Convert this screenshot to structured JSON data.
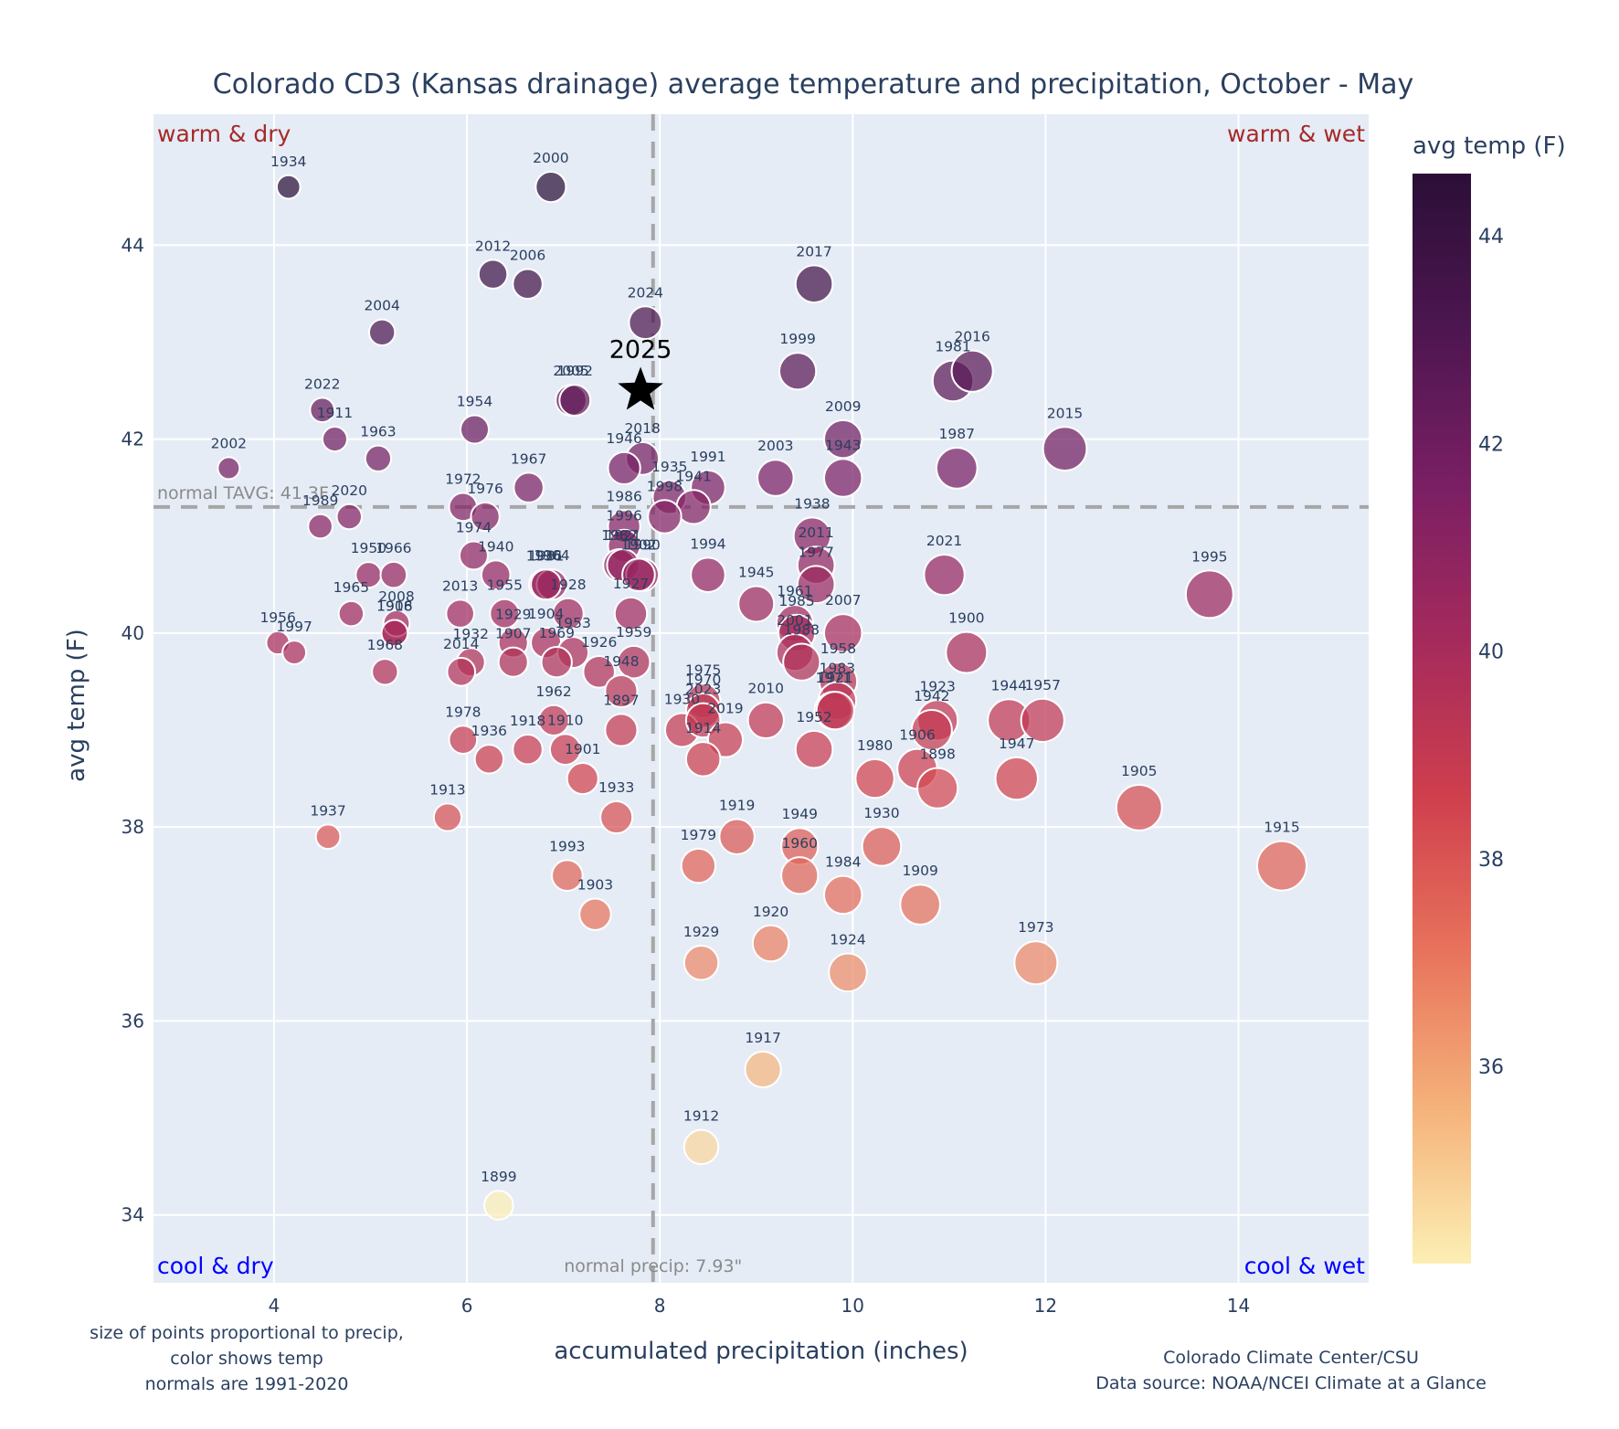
{
  "chart_data": {
    "type": "scatter",
    "title": "Colorado CD3 (Kansas drainage) average temperature and precipitation, October - May",
    "xlabel": "accumulated precipitation (inches)",
    "ylabel": "avg temp (F)",
    "xlim": [
      2.75,
      15.35
    ],
    "ylim": [
      33.3,
      45.35
    ],
    "xticks": [
      4,
      6,
      8,
      10,
      12,
      14
    ],
    "yticks": [
      34,
      36,
      38,
      40,
      42,
      44
    ],
    "grid": true,
    "colorbar": {
      "title": "avg temp (F)",
      "range": [
        34.1,
        44.6
      ],
      "ticks": [
        36,
        38,
        40,
        42,
        44
      ],
      "colorscale": [
        "#fcefb4",
        "#f5b27a",
        "#e8735c",
        "#cf3f4d",
        "#a52a5c",
        "#7a1f64",
        "#4d1650",
        "#2b0f37"
      ]
    },
    "normals": {
      "temp": 41.3,
      "temp_label": "normal TAVG: 41.3F",
      "precip": 7.93,
      "precip_label": "normal precip: 7.93\""
    },
    "quadrants": {
      "warm_dry": "warm & dry",
      "warm_wet": "warm & wet",
      "cool_dry": "cool & dry",
      "cool_wet": "cool & wet"
    },
    "highlight": {
      "year": "2025",
      "x": 7.8,
      "y": 42.5
    },
    "notes_left": [
      "size of points proportional to precip,",
      "color shows temp",
      "normals are 1991-2020"
    ],
    "notes_right": [
      "Colorado Climate Center/CSU",
      "Data source: NOAA/NCEI Climate at a Glance"
    ],
    "points": [
      {
        "year": "1934",
        "x": 4.15,
        "y": 44.6
      },
      {
        "year": "2000",
        "x": 6.87,
        "y": 44.6
      },
      {
        "year": "2012",
        "x": 6.27,
        "y": 43.7
      },
      {
        "year": "2006",
        "x": 6.63,
        "y": 43.6
      },
      {
        "year": "2017",
        "x": 9.6,
        "y": 43.6
      },
      {
        "year": "2024",
        "x": 7.85,
        "y": 43.2
      },
      {
        "year": "2004",
        "x": 5.12,
        "y": 43.1
      },
      {
        "year": "1999",
        "x": 9.43,
        "y": 42.7
      },
      {
        "year": "1981",
        "x": 11.04,
        "y": 42.6
      },
      {
        "year": "2016",
        "x": 11.24,
        "y": 42.7
      },
      {
        "year": "2005",
        "x": 7.08,
        "y": 42.4
      },
      {
        "year": "1992",
        "x": 7.12,
        "y": 42.4
      },
      {
        "year": "2022",
        "x": 4.5,
        "y": 42.3
      },
      {
        "year": "1954",
        "x": 6.08,
        "y": 42.1
      },
      {
        "year": "1911",
        "x": 4.63,
        "y": 42.0
      },
      {
        "year": "2009",
        "x": 9.9,
        "y": 42.0
      },
      {
        "year": "1943",
        "x": 9.9,
        "y": 41.6
      },
      {
        "year": "2015",
        "x": 12.2,
        "y": 41.9
      },
      {
        "year": "1963",
        "x": 5.08,
        "y": 41.8
      },
      {
        "year": "2018",
        "x": 7.82,
        "y": 41.8
      },
      {
        "year": "2002",
        "x": 3.53,
        "y": 41.7
      },
      {
        "year": "1946",
        "x": 7.63,
        "y": 41.7
      },
      {
        "year": "1987",
        "x": 11.08,
        "y": 41.7
      },
      {
        "year": "2003",
        "x": 9.2,
        "y": 41.6
      },
      {
        "year": "1991",
        "x": 8.5,
        "y": 41.5
      },
      {
        "year": "1935",
        "x": 8.1,
        "y": 41.4
      },
      {
        "year": "1941",
        "x": 8.35,
        "y": 41.3
      },
      {
        "year": "1998",
        "x": 8.05,
        "y": 41.2
      },
      {
        "year": "1967",
        "x": 6.64,
        "y": 41.5
      },
      {
        "year": "1972",
        "x": 5.96,
        "y": 41.3
      },
      {
        "year": "1976",
        "x": 6.19,
        "y": 41.2
      },
      {
        "year": "2020",
        "x": 4.78,
        "y": 41.2
      },
      {
        "year": "1989",
        "x": 4.48,
        "y": 41.1
      },
      {
        "year": "1986",
        "x": 7.63,
        "y": 41.1
      },
      {
        "year": "1938",
        "x": 9.58,
        "y": 41.0
      },
      {
        "year": "1996",
        "x": 7.63,
        "y": 40.9
      },
      {
        "year": "2011",
        "x": 9.62,
        "y": 40.7
      },
      {
        "year": "1974",
        "x": 6.07,
        "y": 40.8
      },
      {
        "year": "1982",
        "x": 7.58,
        "y": 40.7
      },
      {
        "year": "1921",
        "x": 7.62,
        "y": 40.7
      },
      {
        "year": "1990",
        "x": 7.82,
        "y": 40.6
      },
      {
        "year": "1994",
        "x": 8.5,
        "y": 40.6
      },
      {
        "year": "2021",
        "x": 10.95,
        "y": 40.6
      },
      {
        "year": "1940",
        "x": 6.3,
        "y": 40.6
      },
      {
        "year": "1950",
        "x": 4.98,
        "y": 40.6
      },
      {
        "year": "1966",
        "x": 5.24,
        "y": 40.6
      },
      {
        "year": "1936",
        "x": 6.8,
        "y": 40.5
      },
      {
        "year": "1964",
        "x": 6.88,
        "y": 40.5
      },
      {
        "year": "1902",
        "x": 7.78,
        "y": 40.6
      },
      {
        "year": "1995",
        "x": 13.7,
        "y": 40.4
      },
      {
        "year": "1945",
        "x": 9.0,
        "y": 40.3
      },
      {
        "year": "1977",
        "x": 9.62,
        "y": 40.5
      },
      {
        "year": "1955",
        "x": 6.39,
        "y": 40.2
      },
      {
        "year": "2013",
        "x": 5.93,
        "y": 40.2
      },
      {
        "year": "1965",
        "x": 4.8,
        "y": 40.2
      },
      {
        "year": "1981b",
        "x": 6.82,
        "y": 40.5
      },
      {
        "year": "1916",
        "x": 5.25,
        "y": 40.0
      },
      {
        "year": "2008",
        "x": 5.27,
        "y": 40.1
      },
      {
        "year": "1908",
        "x": 5.25,
        "y": 40.0
      },
      {
        "year": "1961",
        "x": 9.4,
        "y": 40.1
      },
      {
        "year": "1985",
        "x": 9.42,
        "y": 40.0
      },
      {
        "year": "2007",
        "x": 9.9,
        "y": 40.0
      },
      {
        "year": "1928",
        "x": 7.05,
        "y": 40.2
      },
      {
        "year": "1929",
        "x": 6.48,
        "y": 39.9
      },
      {
        "year": "1904",
        "x": 6.82,
        "y": 39.9
      },
      {
        "year": "2001",
        "x": 9.4,
        "y": 39.8
      },
      {
        "year": "1988",
        "x": 9.47,
        "y": 39.7
      },
      {
        "year": "1900",
        "x": 11.18,
        "y": 39.8
      },
      {
        "year": "1956",
        "x": 4.04,
        "y": 39.9
      },
      {
        "year": "1997",
        "x": 4.21,
        "y": 39.8
      },
      {
        "year": "1953",
        "x": 7.1,
        "y": 39.8
      },
      {
        "year": "1927",
        "x": 7.7,
        "y": 40.2
      },
      {
        "year": "1959",
        "x": 7.73,
        "y": 39.7
      },
      {
        "year": "1907",
        "x": 6.48,
        "y": 39.7
      },
      {
        "year": "1969",
        "x": 6.93,
        "y": 39.7
      },
      {
        "year": "1932",
        "x": 6.04,
        "y": 39.7
      },
      {
        "year": "1926",
        "x": 7.37,
        "y": 39.6
      },
      {
        "year": "2014",
        "x": 5.94,
        "y": 39.6
      },
      {
        "year": "1968",
        "x": 5.15,
        "y": 39.6
      },
      {
        "year": "1958",
        "x": 9.85,
        "y": 39.5
      },
      {
        "year": "1948",
        "x": 7.6,
        "y": 39.4
      },
      {
        "year": "1983",
        "x": 9.84,
        "y": 39.3
      },
      {
        "year": "1971",
        "x": 9.8,
        "y": 39.2
      },
      {
        "year": "1921b",
        "x": 9.82,
        "y": 39.2
      },
      {
        "year": "1975",
        "x": 8.45,
        "y": 39.3
      },
      {
        "year": "1970",
        "x": 8.45,
        "y": 39.2
      },
      {
        "year": "1923",
        "x": 10.88,
        "y": 39.1
      },
      {
        "year": "1944",
        "x": 11.62,
        "y": 39.1
      },
      {
        "year": "1957",
        "x": 11.97,
        "y": 39.1
      },
      {
        "year": "2010",
        "x": 9.1,
        "y": 39.1
      },
      {
        "year": "1962",
        "x": 6.9,
        "y": 39.1
      },
      {
        "year": "1897",
        "x": 7.6,
        "y": 39.0
      },
      {
        "year": "1930",
        "x": 8.23,
        "y": 39.0
      },
      {
        "year": "2023",
        "x": 8.45,
        "y": 39.1
      },
      {
        "year": "1942",
        "x": 10.82,
        "y": 39.0
      },
      {
        "year": "1906",
        "x": 10.67,
        "y": 38.6
      },
      {
        "year": "1978",
        "x": 5.96,
        "y": 38.9
      },
      {
        "year": "2019",
        "x": 8.68,
        "y": 38.9
      },
      {
        "year": "1914",
        "x": 8.45,
        "y": 38.7
      },
      {
        "year": "1918",
        "x": 6.63,
        "y": 38.8
      },
      {
        "year": "1910",
        "x": 7.02,
        "y": 38.8
      },
      {
        "year": "1952",
        "x": 9.6,
        "y": 38.8
      },
      {
        "year": "1936b",
        "x": 6.23,
        "y": 38.7
      },
      {
        "year": "1898",
        "x": 10.88,
        "y": 38.4
      },
      {
        "year": "1980",
        "x": 10.23,
        "y": 38.5
      },
      {
        "year": "1947",
        "x": 11.7,
        "y": 38.5
      },
      {
        "year": "1901",
        "x": 7.2,
        "y": 38.5
      },
      {
        "year": "1905",
        "x": 12.97,
        "y": 38.2
      },
      {
        "year": "1913",
        "x": 5.8,
        "y": 38.1
      },
      {
        "year": "1933",
        "x": 7.55,
        "y": 38.1
      },
      {
        "year": "1937",
        "x": 4.56,
        "y": 37.9
      },
      {
        "year": "1919",
        "x": 8.8,
        "y": 37.9
      },
      {
        "year": "1949",
        "x": 9.45,
        "y": 37.8
      },
      {
        "year": "1930b",
        "x": 10.3,
        "y": 37.8
      },
      {
        "year": "1979",
        "x": 8.4,
        "y": 37.6
      },
      {
        "year": "1915",
        "x": 14.45,
        "y": 37.6
      },
      {
        "year": "1993",
        "x": 7.04,
        "y": 37.5
      },
      {
        "year": "1960",
        "x": 9.45,
        "y": 37.5
      },
      {
        "year": "1984",
        "x": 9.9,
        "y": 37.3
      },
      {
        "year": "1909",
        "x": 10.7,
        "y": 37.2
      },
      {
        "year": "1903",
        "x": 7.33,
        "y": 37.1
      },
      {
        "year": "1920",
        "x": 9.15,
        "y": 36.8
      },
      {
        "year": "1929b",
        "x": 8.43,
        "y": 36.6
      },
      {
        "year": "1924",
        "x": 9.95,
        "y": 36.5
      },
      {
        "year": "1973",
        "x": 11.9,
        "y": 36.6
      },
      {
        "year": "1917",
        "x": 9.07,
        "y": 35.5
      },
      {
        "year": "1912",
        "x": 8.43,
        "y": 34.7
      },
      {
        "year": "1899",
        "x": 6.33,
        "y": 34.1
      }
    ]
  }
}
